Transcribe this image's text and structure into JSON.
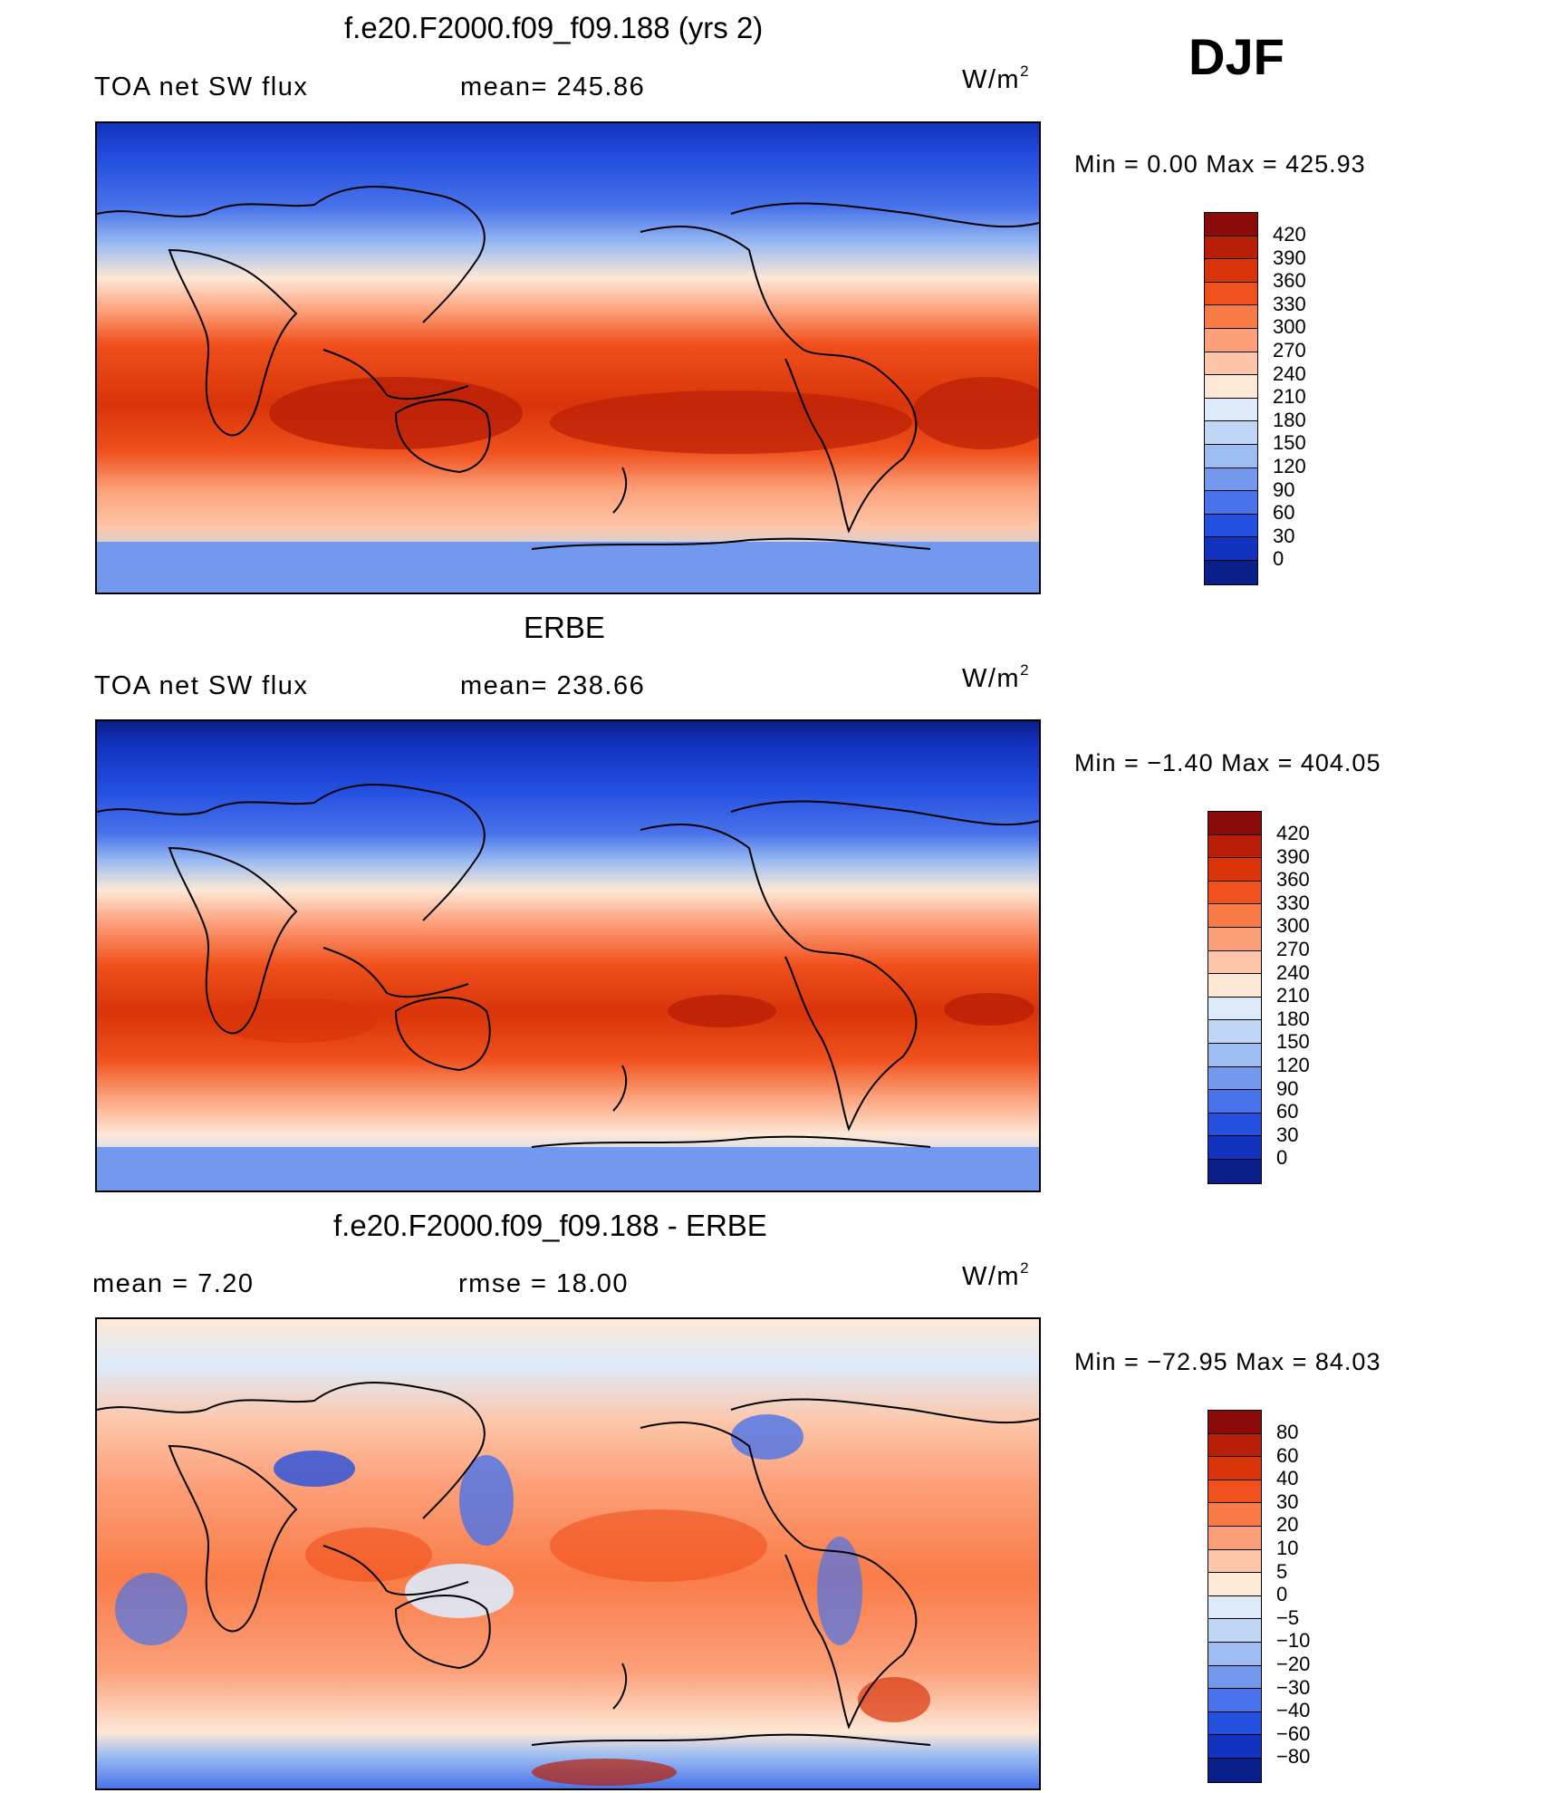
{
  "season": "DJF",
  "panels": [
    {
      "title": "f.e20.F2000.f09_f09.188 (yrs 2)",
      "left_label": "TOA net SW flux",
      "center_label": "mean= 245.86",
      "units": "W/m",
      "units_exp": "2",
      "minmax": "Min =    0.00  Max = 425.93"
    },
    {
      "title": "ERBE",
      "left_label": "TOA net SW flux",
      "center_label": "mean= 238.66",
      "units": "W/m",
      "units_exp": "2",
      "minmax": "Min =  −1.40  Max = 404.05"
    },
    {
      "title": "f.e20.F2000.f09_f09.188 - ERBE",
      "left_label": "mean =     7.20",
      "center_label": "rmse =    18.00",
      "units": "W/m",
      "units_exp": "2",
      "minmax": "Min = −72.95  Max =   84.03"
    }
  ],
  "colorbars": {
    "absolute": {
      "labels": [
        "420",
        "390",
        "360",
        "330",
        "300",
        "270",
        "240",
        "210",
        "180",
        "150",
        "120",
        "90",
        "60",
        "30",
        "0"
      ],
      "colors": [
        "#8b0a0a",
        "#b91f06",
        "#d9340a",
        "#f0501c",
        "#f97c48",
        "#fca07a",
        "#fdc6a8",
        "#fde8d6",
        "#ddeaf9",
        "#c0d6f5",
        "#9dbdf2",
        "#7399ef",
        "#4973ea",
        "#2450e0",
        "#1232c0",
        "#0a1f8a"
      ]
    },
    "difference": {
      "labels": [
        "80",
        "60",
        "40",
        "30",
        "20",
        "10",
        "5",
        "0",
        "−5",
        "−10",
        "−20",
        "−30",
        "−40",
        "−60",
        "−80"
      ],
      "colors": [
        "#8b0a0a",
        "#b91f06",
        "#d9340a",
        "#f0501c",
        "#f97c48",
        "#fca07a",
        "#fdc6a8",
        "#fde8d6",
        "#ddeaf9",
        "#c0d6f5",
        "#9dbdf2",
        "#7399ef",
        "#4973ea",
        "#2450e0",
        "#1232c0",
        "#0a1f8a"
      ]
    }
  }
}
